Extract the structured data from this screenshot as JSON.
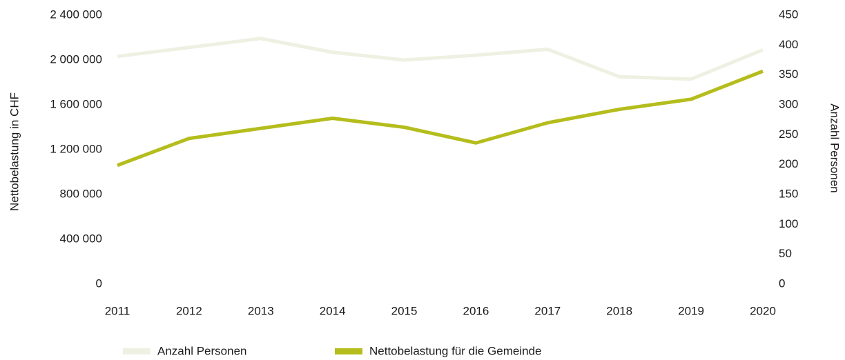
{
  "chart_data": {
    "type": "line",
    "categories": [
      "2011",
      "2012",
      "2013",
      "2014",
      "2015",
      "2016",
      "2017",
      "2018",
      "2019",
      "2020"
    ],
    "series": [
      {
        "name": "Anzahl Personen",
        "color": "#eef0e2",
        "axis": "y2",
        "values": [
          381,
          396,
          411,
          388,
          375,
          383,
          393,
          347,
          343,
          392
        ]
      },
      {
        "name": "Nettobelastung für die Gemeinde",
        "color": "#b4bd1c",
        "values": [
          1060000,
          1300000,
          1390000,
          1480000,
          1400000,
          1260000,
          1440000,
          1560000,
          1650000,
          1900000
        ]
      }
    ],
    "ylabel": "Nettobelastung in CHF",
    "y2label": "Anzahl Personen",
    "ylim": [
      0,
      2400000
    ],
    "yticks": [
      0,
      {
        "value": 400000,
        "label": "400 000"
      },
      {
        "value": 800000,
        "label": "800 000"
      },
      {
        "value": 1200000,
        "label": "1 200 000"
      },
      {
        "value": 1600000,
        "label": "1 600 000"
      },
      {
        "value": 2000000,
        "label": "2 000 000"
      },
      {
        "value": 2400000,
        "label": "2 400 000"
      }
    ],
    "y2lim": [
      0,
      450
    ],
    "y2ticks": [
      0,
      50,
      100,
      150,
      200,
      250,
      300,
      350,
      400,
      450
    ],
    "legend": "bottom"
  }
}
